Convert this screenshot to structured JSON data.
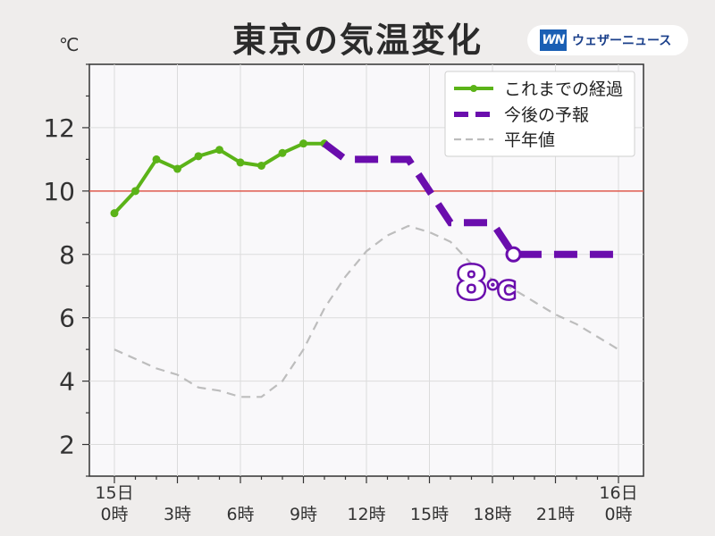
{
  "title": "東京の気温変化",
  "unit": "℃",
  "brand": {
    "logo": "WN",
    "name": "ウェザーニュース"
  },
  "callout": {
    "value": "8",
    "unit": "℃"
  },
  "colors": {
    "observed": "#5bb318",
    "forecast": "#6a0dad",
    "normal": "#bdbdbd",
    "reference": "#e05a4e",
    "plot_bg": "#f9f8fa",
    "grid": "#dcdcdc"
  },
  "chart_data": {
    "type": "line",
    "title": "東京の気温変化",
    "ylabel": "℃",
    "xlim": [
      0,
      24
    ],
    "ylim": [
      1,
      14
    ],
    "grid": true,
    "legend_position": "top-right",
    "yticks": [
      2,
      4,
      6,
      8,
      10,
      12
    ],
    "xticks": [
      {
        "x": 0,
        "line1": "15日",
        "line2": "0時"
      },
      {
        "x": 3,
        "line1": "",
        "line2": "3時"
      },
      {
        "x": 6,
        "line1": "",
        "line2": "6時"
      },
      {
        "x": 9,
        "line1": "",
        "line2": "9時"
      },
      {
        "x": 12,
        "line1": "",
        "line2": "12時"
      },
      {
        "x": 15,
        "line1": "",
        "line2": "15時"
      },
      {
        "x": 18,
        "line1": "",
        "line2": "18時"
      },
      {
        "x": 21,
        "line1": "",
        "line2": "21時"
      },
      {
        "x": 24,
        "line1": "16日",
        "line2": "0時"
      }
    ],
    "reference_line": 10,
    "series": [
      {
        "name": "これまでの経過",
        "style": "observed",
        "x": [
          0,
          1,
          2,
          3,
          4,
          5,
          6,
          7,
          8,
          9,
          10
        ],
        "y": [
          9.3,
          10.0,
          11.0,
          10.7,
          11.1,
          11.3,
          10.9,
          10.8,
          11.2,
          11.5,
          11.5
        ]
      },
      {
        "name": "今後の予報",
        "style": "forecast",
        "x": [
          10,
          11,
          12,
          13,
          14,
          15,
          16,
          17,
          18,
          19,
          20,
          21,
          22,
          23,
          24
        ],
        "y": [
          11.5,
          11.0,
          11.0,
          11.0,
          11.0,
          10.0,
          9.0,
          9.0,
          9.0,
          8.0,
          8.0,
          8.0,
          8.0,
          8.0,
          8.0
        ]
      },
      {
        "name": "平年値",
        "style": "normal",
        "x": [
          0,
          1,
          2,
          3,
          4,
          5,
          6,
          7,
          8,
          9,
          10,
          11,
          12,
          13,
          14,
          15,
          16,
          17,
          18,
          19,
          20,
          21,
          22,
          23,
          24
        ],
        "y": [
          5.0,
          4.7,
          4.4,
          4.2,
          3.8,
          3.7,
          3.5,
          3.5,
          4.0,
          5.0,
          6.3,
          7.3,
          8.1,
          8.6,
          8.9,
          8.7,
          8.4,
          7.7,
          7.2,
          6.9,
          6.5,
          6.1,
          5.8,
          5.4,
          5.0
        ]
      }
    ],
    "marker": {
      "x": 19,
      "y": 8.0
    }
  }
}
